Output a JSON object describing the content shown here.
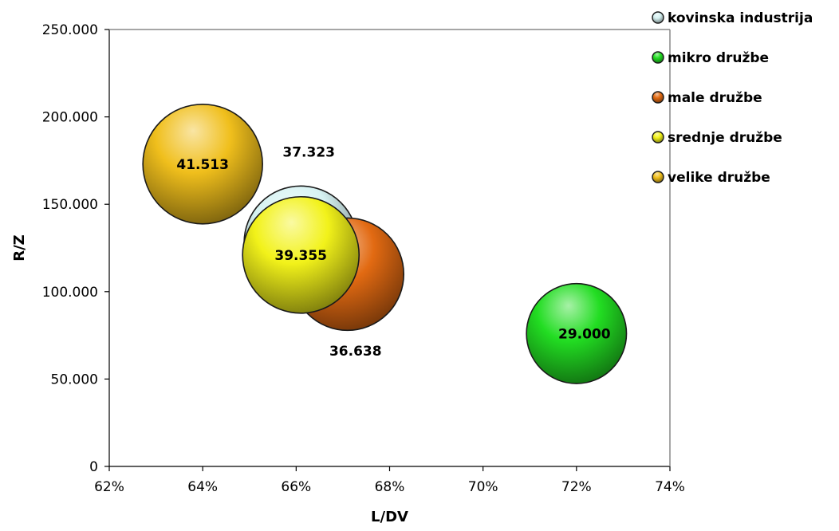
{
  "chart_data": {
    "type": "bubble",
    "xlabel": "L/DV",
    "ylabel": "R/Z",
    "xlim": [
      0.62,
      0.74
    ],
    "ylim": [
      0,
      250000
    ],
    "x_ticks": [
      "62%",
      "64%",
      "66%",
      "68%",
      "70%",
      "72%",
      "74%"
    ],
    "y_ticks": [
      "0",
      "50.000",
      "100.000",
      "150.000",
      "200.000",
      "250.000"
    ],
    "grid": false,
    "legend_position": "top-right",
    "series": [
      {
        "name": "kovinska industrija",
        "x": 0.661,
        "y": 128000,
        "size": 37323,
        "label": "37.323",
        "color": "#d6f2f2"
      },
      {
        "name": "mikro družbe",
        "x": 0.72,
        "y": 76000,
        "size": 29000,
        "label": "29.000",
        "color": "#22dd22"
      },
      {
        "name": "male družbe",
        "x": 0.671,
        "y": 110000,
        "size": 36638,
        "label": "36.638",
        "color": "#e26a12"
      },
      {
        "name": "srednje družbe",
        "x": 0.661,
        "y": 121000,
        "size": 39355,
        "label": "39.355",
        "color": "#f2f21a"
      },
      {
        "name": "velike družbe",
        "x": 0.64,
        "y": 173000,
        "size": 41513,
        "label": "41.513",
        "color": "#f0bf1c"
      }
    ]
  }
}
